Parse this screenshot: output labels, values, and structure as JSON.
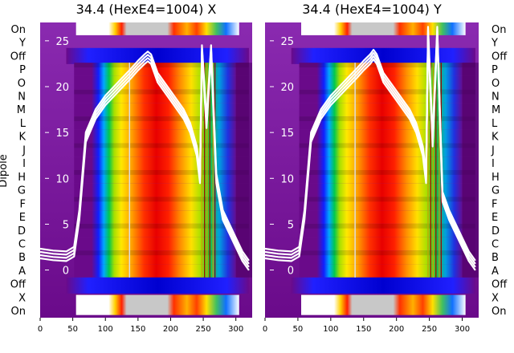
{
  "chart_data": [
    {
      "type": "heatmap",
      "title": "34.4 (HexE4=1004) X",
      "ylabel": "Dipole",
      "x_ticks": [
        0,
        50,
        100,
        150,
        200,
        250,
        300
      ],
      "xlim": [
        0,
        325
      ],
      "row_labels_top_to_bottom": [
        "On",
        "Y",
        "Off",
        "P",
        "O",
        "N",
        "M",
        "L",
        "K",
        "J",
        "I",
        "H",
        "G",
        "F",
        "E",
        "D",
        "C",
        "B",
        "A",
        "Off",
        "X",
        "On"
      ],
      "overlay": {
        "y_ticks": [
          25,
          20,
          15,
          10,
          5,
          0
        ],
        "ylim": [
          -5.2,
          27
        ],
        "traces": [
          {
            "x": [
              0,
              20,
              40,
              52,
              60,
              70,
              85,
              100,
              120,
              140,
              150,
              160,
              165,
              170,
              175,
              180,
              190,
              200,
              210,
              220,
              230,
              240,
              245,
              248,
              255,
              262,
              270,
              280,
              290,
              300,
              310,
              320
            ],
            "y": [
              1.8,
              1.6,
              1.5,
              2.0,
              6.0,
              14.5,
              17.0,
              18.5,
              20.0,
              21.5,
              22.3,
              23.0,
              23.3,
              23.0,
              22.0,
              21.0,
              20.0,
              19.0,
              18.0,
              17.0,
              15.5,
              13.0,
              10.0,
              24.0,
              16.0,
              24.0,
              10.0,
              6.0,
              4.5,
              3.0,
              1.5,
              0.5
            ]
          }
        ]
      }
    },
    {
      "type": "heatmap",
      "title": "34.4 (HexE4=1004) Y",
      "x_ticks": [
        0,
        50,
        100,
        150,
        200,
        250,
        300
      ],
      "xlim": [
        0,
        325
      ],
      "row_labels_top_to_bottom": [
        "On",
        "Y",
        "Off",
        "P",
        "O",
        "N",
        "M",
        "L",
        "K",
        "J",
        "I",
        "H",
        "G",
        "F",
        "E",
        "D",
        "C",
        "B",
        "A",
        "Off",
        "X",
        "On"
      ],
      "overlay": {
        "y_ticks": [
          25,
          20,
          15,
          10,
          5,
          0
        ],
        "ylim": [
          -5.2,
          27
        ],
        "traces": [
          {
            "x": [
              0,
              20,
              40,
              52,
              60,
              70,
              85,
              100,
              120,
              140,
              150,
              160,
              165,
              170,
              175,
              180,
              190,
              200,
              210,
              220,
              230,
              240,
              245,
              248,
              255,
              262,
              270,
              280,
              290,
              300,
              310,
              320
            ],
            "y": [
              1.8,
              1.6,
              1.5,
              2.0,
              6.0,
              14.5,
              17.0,
              18.5,
              20.0,
              21.5,
              22.3,
              23.0,
              23.5,
              23.0,
              22.0,
              21.0,
              20.0,
              19.0,
              18.0,
              17.0,
              15.5,
              13.0,
              10.0,
              26.0,
              14.0,
              26.0,
              8.0,
              6.0,
              4.5,
              3.0,
              1.5,
              0.5
            ]
          }
        ]
      }
    }
  ]
}
